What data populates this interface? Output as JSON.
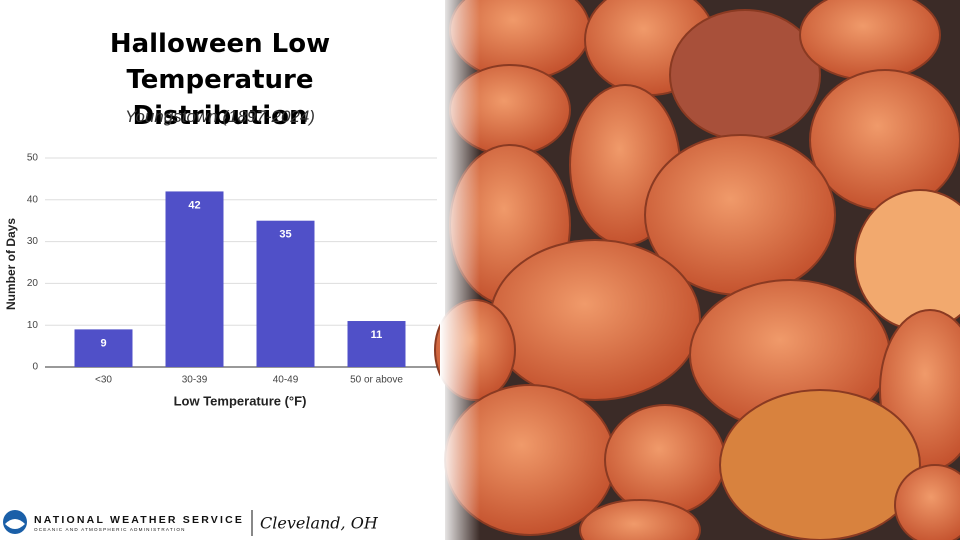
{
  "chart_data": {
    "type": "bar",
    "title": "Halloween Low Temperature Distribution",
    "subtitle": "Youngstown (1897-2024)",
    "categories": [
      "<30",
      "30-39",
      "40-49",
      "50 or above"
    ],
    "values": [
      9,
      42,
      35,
      11
    ],
    "color": "#5050c8",
    "x_label": "Low Temperature (°F)",
    "y_label": "Number of Days",
    "ylim": [
      0,
      50
    ],
    "yticks": [
      0,
      10,
      20,
      30,
      40,
      50
    ],
    "grid": true
  },
  "footer": {
    "agency": "NATIONAL WEATHER SERVICE",
    "agency_sub": "OCEANIC AND ATMOSPHERIC ADMINISTRATION",
    "office": "Cleveland, OH"
  }
}
